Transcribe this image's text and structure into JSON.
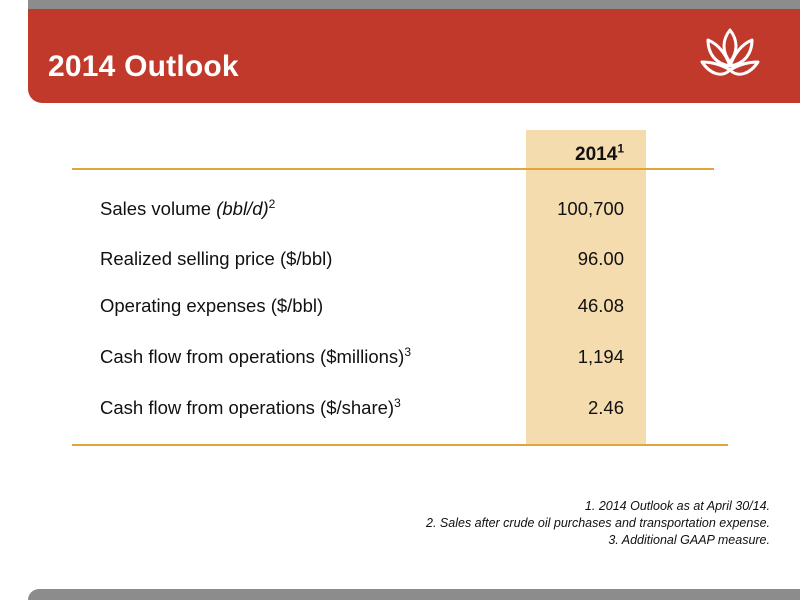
{
  "slide": {
    "title": "2014 Outlook"
  },
  "table": {
    "column_header": "2014",
    "column_header_note": "1",
    "rows": [
      {
        "label": "Sales volume ",
        "label_italic": "(bbl/d)",
        "note": "2",
        "value": "100,700"
      },
      {
        "label": "Realized selling price ($/bbl)",
        "label_italic": "",
        "note": "",
        "value": "96.00"
      },
      {
        "label": "Operating expenses ($/bbl)",
        "label_italic": "",
        "note": "",
        "value": "46.08"
      },
      {
        "label": "Cash flow from operations ($millions)",
        "label_italic": "",
        "note": "3",
        "value": "1,194"
      },
      {
        "label": "Cash flow from operations ($/share)",
        "label_italic": "",
        "note": "3",
        "value": "2.46"
      }
    ]
  },
  "footnotes": [
    "1. 2014 Outlook as at April 30/14.",
    "2. Sales after crude oil purchases and transportation expense.",
    "3.   Additional GAAP measure."
  ],
  "colors": {
    "header_red": "#c0392b",
    "accent_gold": "#e1a53c",
    "column_highlight": "#f4dcae",
    "frame_gray": "#8c8c8c"
  },
  "icons": {
    "logo": "leaf-flame-logo-icon"
  }
}
